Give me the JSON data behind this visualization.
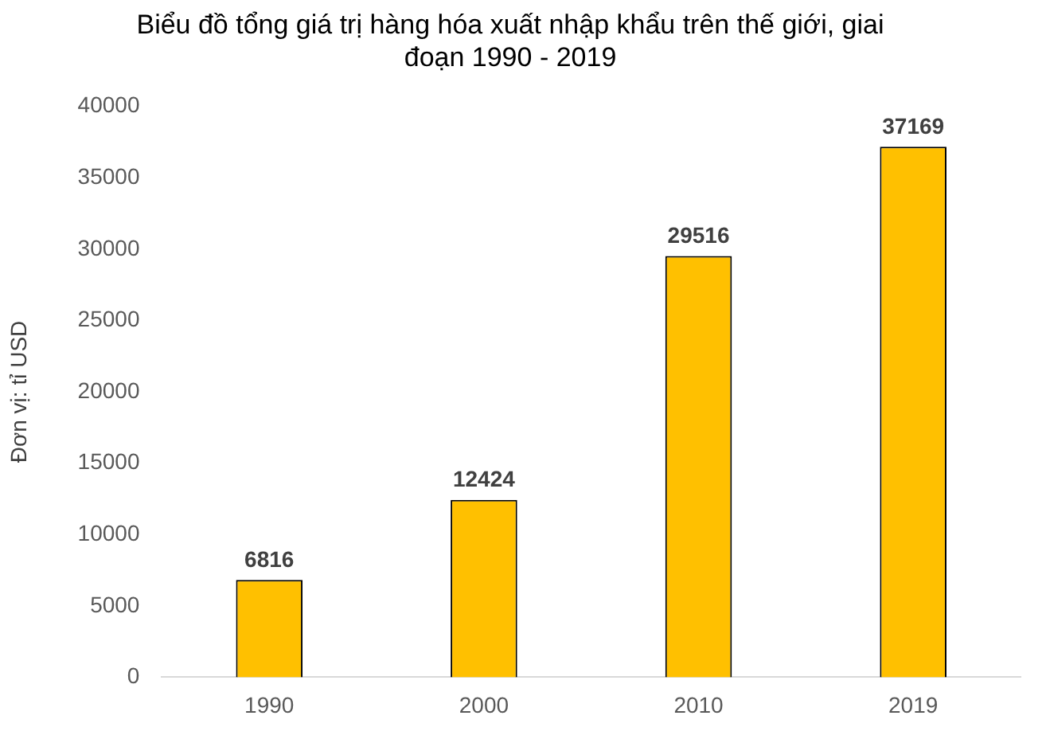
{
  "chart_data": {
    "type": "bar",
    "title": "Biểu đồ tổng giá trị hàng hóa xuất nhập khẩu trên thế giới, giai đoạn 1990 - 2019",
    "ylabel": "Đơn vị: tỉ USD",
    "categories": [
      "1990",
      "2000",
      "2010",
      "2019"
    ],
    "values": [
      6816,
      12424,
      29516,
      37169
    ],
    "color": "#ffc000",
    "ylim": [
      0,
      40000
    ],
    "yticks": [
      0,
      5000,
      10000,
      15000,
      20000,
      25000,
      30000,
      35000,
      40000
    ],
    "grid": false,
    "legend": false,
    "data_labels": true
  }
}
